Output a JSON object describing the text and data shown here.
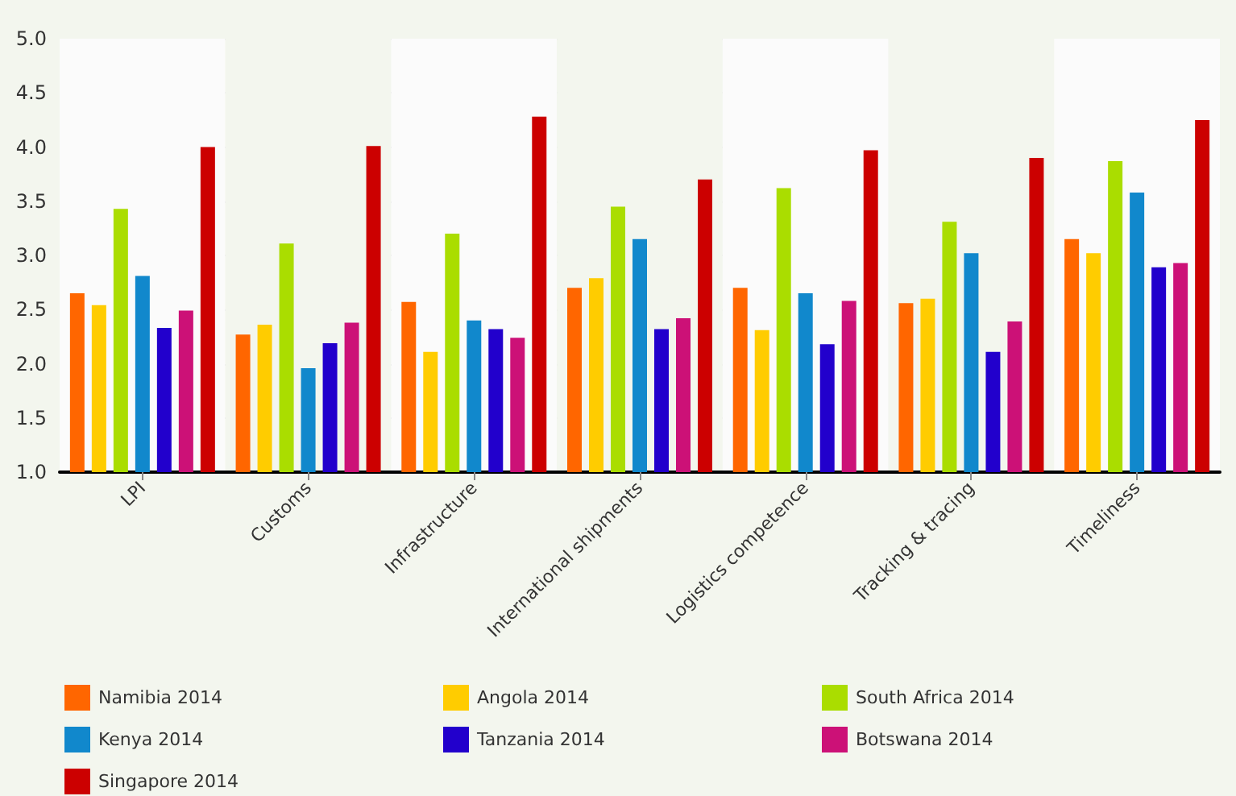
{
  "chart_data": {
    "type": "bar",
    "categories": [
      "LPI",
      "Customs",
      "Infrastructure",
      "International shipments",
      "Logistics competence",
      "Tracking & tracing",
      "Timeliness"
    ],
    "series": [
      {
        "name": "Namibia 2014",
        "color": "#ff6600",
        "values": [
          2.65,
          2.27,
          2.57,
          2.7,
          2.7,
          2.56,
          3.15
        ]
      },
      {
        "name": "Angola 2014",
        "color": "#ffcc00",
        "values": [
          2.54,
          2.36,
          2.11,
          2.79,
          2.31,
          2.6,
          3.02
        ]
      },
      {
        "name": "South Africa 2014",
        "color": "#aadd00",
        "values": [
          3.43,
          3.11,
          3.2,
          3.45,
          3.62,
          3.31,
          3.87
        ]
      },
      {
        "name": "Kenya 2014",
        "color": "#1188cc",
        "values": [
          2.81,
          1.96,
          2.4,
          3.15,
          2.65,
          3.02,
          3.58
        ]
      },
      {
        "name": "Tanzania 2014",
        "color": "#2200cc",
        "values": [
          2.33,
          2.19,
          2.32,
          2.32,
          2.18,
          2.11,
          2.89
        ]
      },
      {
        "name": "Botswana 2014",
        "color": "#cc1177",
        "values": [
          2.49,
          2.38,
          2.24,
          2.42,
          2.58,
          2.39,
          2.93
        ]
      },
      {
        "name": "Singapore 2014",
        "color": "#cc0000",
        "values": [
          4.0,
          4.01,
          4.28,
          3.7,
          3.97,
          3.9,
          4.25
        ]
      }
    ],
    "ylim": [
      1.0,
      5.0
    ],
    "yticks": [
      {
        "value": 1,
        "label": "1.0"
      },
      {
        "value": 1.5,
        "label": "1.5"
      },
      {
        "value": 2,
        "label": "2.0"
      },
      {
        "value": 2.5,
        "label": "2.5"
      },
      {
        "value": 3,
        "label": "3.0"
      },
      {
        "value": 3.5,
        "label": "3.5"
      },
      {
        "value": 4,
        "label": "4.0"
      },
      {
        "value": 4.5,
        "label": "4.5"
      },
      {
        "value": 5,
        "label": "5.0"
      }
    ],
    "grid": "y",
    "legend": "bottom"
  }
}
